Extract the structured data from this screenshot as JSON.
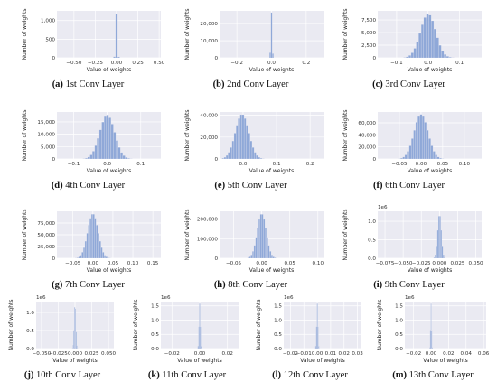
{
  "chart_data": [
    {
      "type": "histogram",
      "caption_label": "(a)",
      "caption_text": "1st Conv Layer",
      "xlabel": "Value of weights",
      "ylabel": "Number of weights",
      "xlim": [
        -0.7,
        0.52
      ],
      "ylim": [
        0,
        1260
      ],
      "xticks": [
        -0.5,
        -0.25,
        0.0,
        0.25,
        0.5
      ],
      "xticklabels": [
        "−0.50",
        "−0.25",
        "0.00",
        "0.25",
        "0.50"
      ],
      "yticks": [
        0,
        500,
        1000
      ],
      "yticklabels": [
        "0",
        "500",
        "1,000"
      ],
      "y_multiplier": "",
      "bin_width": 0.025,
      "bins": [
        {
          "x": 0.0,
          "count": 1180
        },
        {
          "x": -0.025,
          "count": 30
        },
        {
          "x": 0.025,
          "count": 25
        }
      ]
    },
    {
      "type": "histogram",
      "caption_label": "(b)",
      "caption_text": "2nd Conv Layer",
      "xlabel": "Value of weights",
      "ylabel": "Number of weights",
      "xlim": [
        -0.3,
        0.3
      ],
      "ylim": [
        0,
        27500
      ],
      "xticks": [
        -0.2,
        0.0,
        0.2
      ],
      "xticklabels": [
        "−0.2",
        "0.0",
        "0.2"
      ],
      "yticks": [
        0,
        10000,
        20000
      ],
      "yticklabels": [
        "0",
        "10,000",
        "20,000"
      ],
      "y_multiplier": "",
      "bin_width": 0.008,
      "bins": [
        {
          "x": -0.008,
          "count": 3000
        },
        {
          "x": 0.0,
          "count": 26500
        },
        {
          "x": 0.008,
          "count": 2500
        }
      ]
    },
    {
      "type": "histogram",
      "caption_label": "(c)",
      "caption_text": "3rd Conv Layer",
      "xlabel": "Value of weights",
      "ylabel": "Number of weights",
      "xlim": [
        -0.16,
        0.17
      ],
      "ylim": [
        0,
        9300
      ],
      "xticks": [
        -0.1,
        0.0,
        0.1
      ],
      "xticklabels": [
        "−0.1",
        "0.0",
        "0.1"
      ],
      "yticks": [
        0,
        2500,
        5000,
        7500
      ],
      "yticklabels": [
        "0",
        "2,500",
        "5,000",
        "7,500"
      ],
      "y_multiplier": "",
      "gaussian": {
        "mu": 0.0,
        "sigma": 0.024,
        "peak": 8700,
        "bin_width": 0.008,
        "from": -0.09,
        "to": 0.1
      }
    },
    {
      "type": "histogram",
      "caption_label": "(d)",
      "caption_text": "4th Conv Layer",
      "xlabel": "Value of weights",
      "ylabel": "Number of weights",
      "xlim": [
        -0.15,
        0.16
      ],
      "ylim": [
        0,
        19000
      ],
      "xticks": [
        -0.1,
        0.0,
        0.1
      ],
      "xticklabels": [
        "−0.1",
        "0.0",
        "0.1"
      ],
      "yticks": [
        0,
        5000,
        10000,
        15000
      ],
      "yticklabels": [
        "0",
        "5,000",
        "10,000",
        "15,000"
      ],
      "y_multiplier": "",
      "gaussian": {
        "mu": 0.0,
        "sigma": 0.022,
        "peak": 17800,
        "bin_width": 0.007,
        "from": -0.09,
        "to": 0.09
      }
    },
    {
      "type": "histogram",
      "caption_label": "(e)",
      "caption_text": "5th Conv Layer",
      "xlabel": "Value of weights",
      "ylabel": "Number of weights",
      "xlim": [
        -0.07,
        0.24
      ],
      "ylim": [
        0,
        43000
      ],
      "xticks": [
        0.0,
        0.1,
        0.2
      ],
      "xticklabels": [
        "0.0",
        "0.1",
        "0.2"
      ],
      "yticks": [
        0,
        20000,
        40000
      ],
      "yticklabels": [
        "0",
        "20,000",
        "40,000"
      ],
      "y_multiplier": "",
      "gaussian": {
        "mu": -0.003,
        "sigma": 0.02,
        "peak": 41000,
        "bin_width": 0.006,
        "from": -0.06,
        "to": 0.1
      }
    },
    {
      "type": "histogram",
      "caption_label": "(f)",
      "caption_text": "6th Conv Layer",
      "xlabel": "Value of weights",
      "ylabel": "Number of weights",
      "xlim": [
        -0.1,
        0.14
      ],
      "ylim": [
        0,
        78000
      ],
      "xticks": [
        -0.05,
        0.0,
        0.05,
        0.1
      ],
      "xticklabels": [
        "−0.05",
        "0.00",
        "0.05",
        "0.10"
      ],
      "yticks": [
        0,
        20000,
        40000,
        60000
      ],
      "yticklabels": [
        "0",
        "20,000",
        "40,000",
        "60,000"
      ],
      "y_multiplier": "",
      "gaussian": {
        "mu": 0.0,
        "sigma": 0.016,
        "peak": 74000,
        "bin_width": 0.005,
        "from": -0.07,
        "to": 0.08
      }
    },
    {
      "type": "histogram",
      "caption_label": "(g)",
      "caption_text": "7th Conv Layer",
      "xlabel": "Value of weights",
      "ylabel": "Number of weights",
      "xlim": [
        -0.09,
        0.17
      ],
      "ylim": [
        0,
        100000
      ],
      "xticks": [
        -0.05,
        0.0,
        0.05,
        0.1,
        0.15
      ],
      "xticklabels": [
        "−0.05",
        "0.00",
        "0.05",
        "0.10",
        "0.15"
      ],
      "yticks": [
        0,
        25000,
        50000,
        75000
      ],
      "yticklabels": [
        "0",
        "25,000",
        "50,000",
        "75,000"
      ],
      "y_multiplier": "",
      "gaussian": {
        "mu": 0.0,
        "sigma": 0.013,
        "peak": 95000,
        "bin_width": 0.004,
        "from": -0.05,
        "to": 0.06
      }
    },
    {
      "type": "histogram",
      "caption_label": "(h)",
      "caption_text": "8th Conv Layer",
      "xlabel": "Value of weights",
      "ylabel": "Number of weights",
      "xlim": [
        -0.075,
        0.11
      ],
      "ylim": [
        0,
        240000
      ],
      "xticks": [
        -0.05,
        0.0,
        0.05,
        0.1
      ],
      "xticklabels": [
        "−0.05",
        "0.00",
        "0.05",
        "0.10"
      ],
      "yticks": [
        0,
        100000,
        200000
      ],
      "yticklabels": [
        "0",
        "100,000",
        "200,000"
      ],
      "y_multiplier": "",
      "gaussian": {
        "mu": 0.0,
        "sigma": 0.008,
        "peak": 228000,
        "bin_width": 0.0028,
        "from": -0.035,
        "to": 0.04
      }
    },
    {
      "type": "histogram",
      "caption_label": "(i)",
      "caption_text": "9th Conv Layer",
      "xlabel": "Value of weights",
      "ylabel": "Number of weights",
      "xlim": [
        -0.085,
        0.058
      ],
      "ylim": [
        0,
        1270000
      ],
      "xticks": [
        -0.075,
        -0.05,
        -0.025,
        0.0,
        0.025,
        0.05
      ],
      "xticklabels": [
        "−0.075",
        "−0.050",
        "−0.025",
        "0.000",
        "0.025",
        "0.050"
      ],
      "yticks": [
        0,
        500000,
        1000000
      ],
      "yticklabels": [
        "0.0",
        "0.5",
        "1.0"
      ],
      "y_multiplier": "1e6",
      "gaussian": {
        "mu": 0.0,
        "sigma": 0.0025,
        "peak": 1200000,
        "bin_width": 0.0016,
        "from": -0.012,
        "to": 0.012
      }
    },
    {
      "type": "histogram",
      "caption_label": "(j)",
      "caption_text": "10th Conv Layer",
      "xlabel": "Value of weights",
      "ylabel": "Number of weights",
      "xlim": [
        -0.058,
        0.058
      ],
      "ylim": [
        0,
        1300000
      ],
      "xticks": [
        -0.05,
        -0.025,
        0.0,
        0.025,
        0.05
      ],
      "xticklabels": [
        "−0.050",
        "−0.025",
        "0.000",
        "0.025",
        "0.050"
      ],
      "yticks": [
        0,
        500000,
        1000000
      ],
      "yticklabels": [
        "0.0",
        "0.5",
        "1.0"
      ],
      "y_multiplier": "1e6",
      "gaussian": {
        "mu": 0.0,
        "sigma": 0.0012,
        "peak": 1250000,
        "bin_width": 0.0011,
        "from": -0.006,
        "to": 0.006
      }
    },
    {
      "type": "histogram",
      "caption_label": "(k)",
      "caption_text": "11th Conv Layer",
      "xlabel": "Value of weights",
      "ylabel": "Number of weights",
      "xlim": [
        -0.028,
        0.028
      ],
      "ylim": [
        0,
        1650000
      ],
      "xticks": [
        -0.02,
        0.0,
        0.02
      ],
      "xticklabels": [
        "−0.02",
        "0.00",
        "0.02"
      ],
      "yticks": [
        0,
        500000,
        1000000,
        1500000
      ],
      "yticklabels": [
        "0.0",
        "0.5",
        "1.0",
        "1.5"
      ],
      "y_multiplier": "1e6",
      "gaussian": {
        "mu": 0.0,
        "sigma": 0.0005,
        "peak": 1580000,
        "bin_width": 0.0006,
        "from": -0.003,
        "to": 0.003
      }
    },
    {
      "type": "histogram",
      "caption_label": "(l)",
      "caption_text": "12th Conv Layer",
      "xlabel": "Value of weights",
      "ylabel": "Number of weights",
      "xlim": [
        -0.025,
        0.033
      ],
      "ylim": [
        0,
        1650000
      ],
      "xticks": [
        -0.02,
        -0.01,
        0.0,
        0.01,
        0.02,
        0.03
      ],
      "xticklabels": [
        "−0.02",
        "−0.01",
        "0.00",
        "0.01",
        "0.02",
        "0.03"
      ],
      "yticks": [
        0,
        500000,
        1000000,
        1500000
      ],
      "yticklabels": [
        "0.0",
        "0.5",
        "1.0",
        "1.5"
      ],
      "y_multiplier": "1e6",
      "gaussian": {
        "mu": 0.0,
        "sigma": 0.0005,
        "peak": 1580000,
        "bin_width": 0.0006,
        "from": -0.003,
        "to": 0.003
      }
    },
    {
      "type": "histogram",
      "caption_label": "(m)",
      "caption_text": "13th Conv Layer",
      "xlabel": "Value of weights",
      "ylabel": "Number of weights",
      "xlim": [
        -0.03,
        0.063
      ],
      "ylim": [
        0,
        1650000
      ],
      "xticks": [
        -0.02,
        0.0,
        0.02,
        0.04,
        0.06
      ],
      "xticklabels": [
        "−0.02",
        "0.00",
        "0.02",
        "0.04",
        "0.06"
      ],
      "yticks": [
        0,
        500000,
        1000000,
        1500000
      ],
      "yticklabels": [
        "0.0",
        "0.5",
        "1.0",
        "1.5"
      ],
      "y_multiplier": "1e6",
      "gaussian": {
        "mu": 0.0,
        "sigma": 0.0006,
        "peak": 1580000,
        "bin_width": 0.0008,
        "from": -0.004,
        "to": 0.004
      }
    }
  ]
}
